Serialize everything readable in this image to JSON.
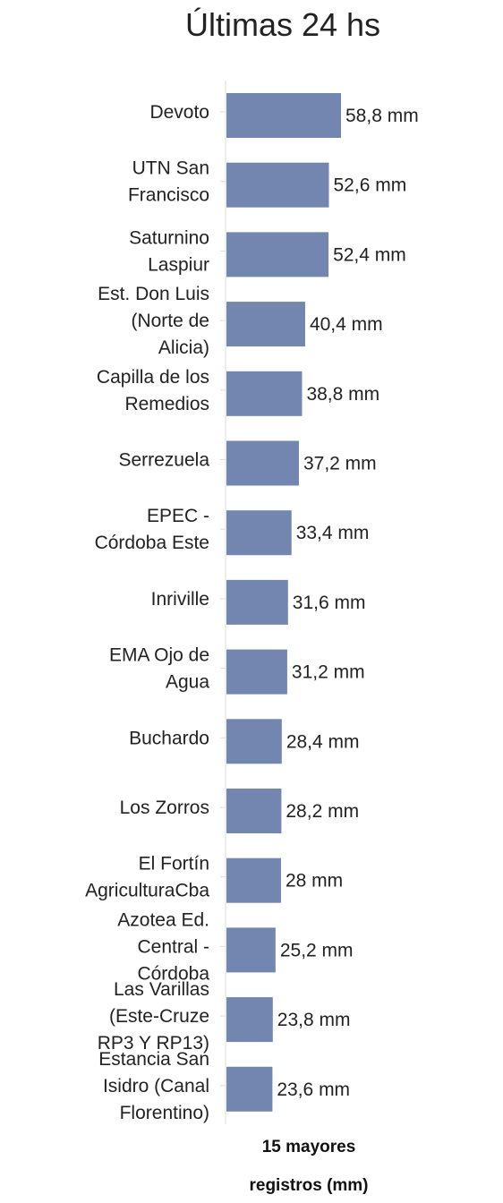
{
  "chart_data": {
    "type": "bar",
    "orientation": "horizontal",
    "title": "Últimas 24 hs",
    "xlabel": "15 mayores registros (mm)",
    "xlabel_lines": [
      "15 mayores",
      "registros (mm)"
    ],
    "ylabel": "",
    "xlim": [
      0,
      58.8
    ],
    "grid": false,
    "bar_color": "#7286b0",
    "categories": [
      [
        "Devoto"
      ],
      [
        "UTN San",
        "Francisco"
      ],
      [
        "Saturnino",
        "Laspiur"
      ],
      [
        "Est. Don Luis",
        "(Norte de",
        "Alicia)"
      ],
      [
        "Capilla de los",
        "Remedios"
      ],
      [
        "Serrezuela"
      ],
      [
        "EPEC -",
        "Córdoba Este"
      ],
      [
        "Inriville"
      ],
      [
        "EMA Ojo de",
        "Agua"
      ],
      [
        "Buchardo"
      ],
      [
        "Los Zorros"
      ],
      [
        "El Fortín",
        "AgriculturaCba"
      ],
      [
        "Azotea Ed.",
        "Central -",
        "Córdoba"
      ],
      [
        "Las Varillas",
        "(Este-Cruze",
        "RP3 Y RP13)"
      ],
      [
        "Estancia San",
        "Isidro (Canal",
        "Florentino)"
      ]
    ],
    "values": [
      58.8,
      52.6,
      52.4,
      40.4,
      38.8,
      37.2,
      33.4,
      31.6,
      31.2,
      28.4,
      28.2,
      28,
      25.2,
      23.8,
      23.6
    ],
    "value_labels": [
      "58,8 mm",
      "52,6 mm",
      "52,4 mm",
      "40,4 mm",
      "38,8 mm",
      "37,2 mm",
      "33,4 mm",
      "31,6 mm",
      "31,2 mm",
      "28,4 mm",
      "28,2 mm",
      "28 mm",
      "25,2 mm",
      "23,8 mm",
      "23,6 mm"
    ]
  }
}
